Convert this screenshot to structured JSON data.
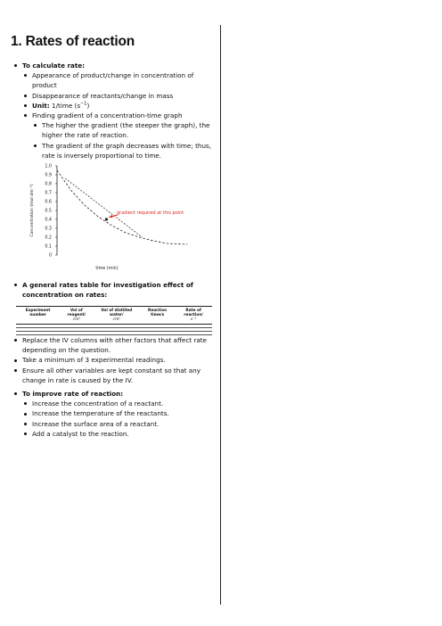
{
  "title": "1. Rates of reaction",
  "section1": {
    "heading": "To calculate rate:",
    "items": [
      "Appearance of product/change in concentration of product",
      "Disappearance of reactants/change in mass"
    ],
    "unit_label": "Unit:",
    "unit_value": "1/time (s",
    "unit_exp": "−1",
    "unit_close": ")",
    "gradient_item": "Finding gradient of a concentration-time graph",
    "subitems": [
      "The higher the gradient (the steeper the graph), the higher the rate of reaction.",
      "The gradient of the graph decreases with time; thus, rate is inversely proportional to time."
    ]
  },
  "chart_data": {
    "type": "line",
    "xlabel": "time (min)",
    "ylabel": "Concentration (mol dm⁻³)",
    "yticks": [
      "1.0",
      "0.9",
      "0.8",
      "0.7",
      "0.6",
      "0.5",
      "0.4",
      "0.3",
      "0.2",
      "0.1",
      "0"
    ],
    "ylim": [
      0,
      1.0
    ],
    "xlim": [
      0,
      10
    ],
    "series": [
      {
        "x": [
          0,
          1,
          2,
          3,
          4,
          5,
          6,
          7,
          8,
          9.5
        ],
        "y": [
          0.95,
          0.73,
          0.56,
          0.43,
          0.33,
          0.25,
          0.2,
          0.16,
          0.13,
          0.12
        ]
      }
    ],
    "tangent": {
      "x": [
        0.6,
        6.2
      ],
      "y": [
        0.86,
        0.2
      ]
    },
    "point": {
      "x": 3.6,
      "y": 0.4
    },
    "annotation": "gradient required at this point",
    "annotation_color": "#e2261c"
  },
  "section2": {
    "heading": "A general rates table for investigation effect of concentration on rates:"
  },
  "rates_table": {
    "headers": [
      {
        "label": "Experiment number",
        "unit": ""
      },
      {
        "label": "Vol of reagent/",
        "unit": "cm³"
      },
      {
        "label": "Vol of distilled water/",
        "unit": "cm³"
      },
      {
        "label": "Reaction time/s",
        "unit": ""
      },
      {
        "label": "Rate of reaction/",
        "unit": "s⁻¹"
      }
    ]
  },
  "section3": {
    "items": [
      "Replace the IV columns with other factors that affect rate depending on the question.",
      "Take a minimum of 3 experimental readings.",
      "Ensure all other variables are kept constant so that any change in rate is caused by the IV."
    ]
  },
  "section4": {
    "heading": "To improve rate of reaction:",
    "items": [
      "Increase the concentration of a reactant.",
      "Increase the temperature of the reactants.",
      "Increase the surface area of a reactant.",
      "Add a catalyst to the reaction."
    ]
  }
}
